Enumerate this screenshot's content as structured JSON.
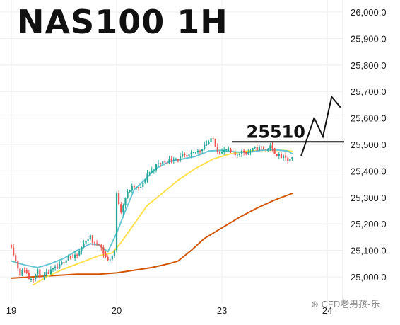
{
  "chart_data": {
    "type": "candlestick",
    "title": "NAS100 1H",
    "ylim": [
      24950,
      26030
    ],
    "y_ticks": [
      "26,000.0",
      "25,900.0",
      "25,800.0",
      "25,700.0",
      "25,600.0",
      "25,500.0",
      "25,400.0",
      "25,300.0",
      "25,200.0",
      "25,100.0",
      "25,000.0"
    ],
    "y_tick_values": [
      26000,
      25900,
      25800,
      25700,
      25600,
      25500,
      25400,
      25300,
      25200,
      25100,
      25000
    ],
    "x_tick_labels": [
      "19",
      "20",
      "23",
      "24"
    ],
    "x_tick_index": [
      0,
      48,
      96,
      144
    ],
    "annotation": {
      "label": "25510",
      "level": 25510
    },
    "projection": [
      {
        "i": 132,
        "p": 25455
      },
      {
        "i": 138,
        "p": 25600
      },
      {
        "i": 142,
        "p": 25530
      },
      {
        "i": 146,
        "p": 25680
      },
      {
        "i": 150,
        "p": 25640
      }
    ],
    "colors": {
      "up": "#26a69a",
      "down": "#ef5350",
      "ma_fast": "#67c6d3",
      "ma_mid": "#ffe14d",
      "ma_slow": "#d35400"
    },
    "ma_fast": [
      {
        "i": 0,
        "p": 25060
      },
      {
        "i": 6,
        "p": 25045
      },
      {
        "i": 12,
        "p": 25035
      },
      {
        "i": 18,
        "p": 25050
      },
      {
        "i": 24,
        "p": 25070
      },
      {
        "i": 30,
        "p": 25100
      },
      {
        "i": 36,
        "p": 25125
      },
      {
        "i": 40,
        "p": 25120
      },
      {
        "i": 44,
        "p": 25095
      },
      {
        "i": 48,
        "p": 25165
      },
      {
        "i": 52,
        "p": 25250
      },
      {
        "i": 56,
        "p": 25330
      },
      {
        "i": 60,
        "p": 25360
      },
      {
        "i": 66,
        "p": 25410
      },
      {
        "i": 72,
        "p": 25435
      },
      {
        "i": 78,
        "p": 25445
      },
      {
        "i": 84,
        "p": 25455
      },
      {
        "i": 90,
        "p": 25475
      },
      {
        "i": 96,
        "p": 25478
      },
      {
        "i": 102,
        "p": 25472
      },
      {
        "i": 108,
        "p": 25470
      },
      {
        "i": 114,
        "p": 25478
      },
      {
        "i": 120,
        "p": 25480
      },
      {
        "i": 126,
        "p": 25475
      },
      {
        "i": 128,
        "p": 25465
      }
    ],
    "ma_mid": [
      {
        "i": 10,
        "p": 24970
      },
      {
        "i": 16,
        "p": 25000
      },
      {
        "i": 24,
        "p": 25030
      },
      {
        "i": 32,
        "p": 25055
      },
      {
        "i": 40,
        "p": 25080
      },
      {
        "i": 46,
        "p": 25090
      },
      {
        "i": 50,
        "p": 25130
      },
      {
        "i": 56,
        "p": 25200
      },
      {
        "i": 62,
        "p": 25270
      },
      {
        "i": 68,
        "p": 25310
      },
      {
        "i": 76,
        "p": 25365
      },
      {
        "i": 84,
        "p": 25410
      },
      {
        "i": 92,
        "p": 25445
      },
      {
        "i": 100,
        "p": 25465
      },
      {
        "i": 108,
        "p": 25475
      },
      {
        "i": 116,
        "p": 25478
      },
      {
        "i": 124,
        "p": 25478
      },
      {
        "i": 128,
        "p": 25474
      }
    ],
    "ma_slow": [
      {
        "i": 0,
        "p": 24995
      },
      {
        "i": 10,
        "p": 25000
      },
      {
        "i": 20,
        "p": 25005
      },
      {
        "i": 30,
        "p": 25010
      },
      {
        "i": 40,
        "p": 25010
      },
      {
        "i": 48,
        "p": 25015
      },
      {
        "i": 56,
        "p": 25025
      },
      {
        "i": 64,
        "p": 25035
      },
      {
        "i": 72,
        "p": 25050
      },
      {
        "i": 76,
        "p": 25060
      },
      {
        "i": 82,
        "p": 25100
      },
      {
        "i": 88,
        "p": 25145
      },
      {
        "i": 96,
        "p": 25185
      },
      {
        "i": 104,
        "p": 25225
      },
      {
        "i": 112,
        "p": 25260
      },
      {
        "i": 120,
        "p": 25290
      },
      {
        "i": 128,
        "p": 25315
      }
    ]
  },
  "watermark": "CFD老男孩-乐"
}
